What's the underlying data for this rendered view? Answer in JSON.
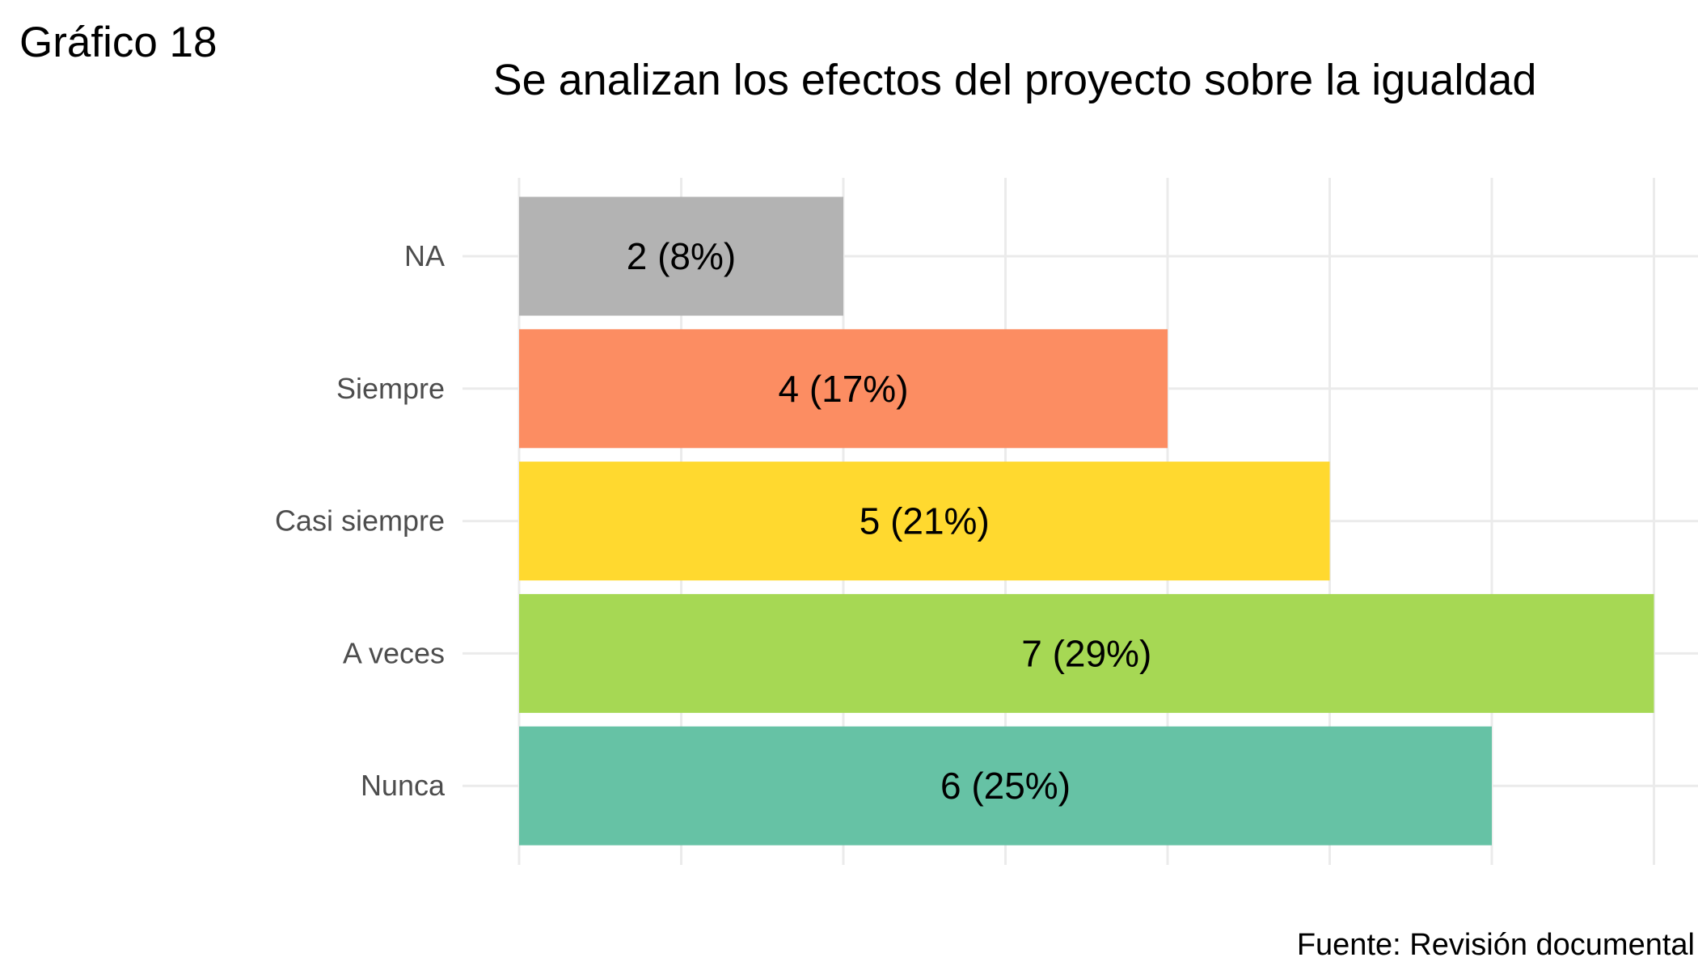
{
  "figure_label": "Gráfico 18",
  "source_note": "Fuente: Revisión documental",
  "chart_data": {
    "type": "bar",
    "orientation": "horizontal",
    "title": "Se analizan los efectos del proyecto sobre la igualdad",
    "xlabel": "",
    "ylabel": "",
    "xlim": [
      0,
      7.2
    ],
    "grid": true,
    "categories": [
      "NA",
      "Siempre",
      "Casi siempre",
      "A veces",
      "Nunca"
    ],
    "values": [
      2,
      4,
      5,
      7,
      6
    ],
    "labels": [
      "2 (8%)",
      "4 (17%)",
      "5 (21%)",
      "7 (29%)",
      "6 (25%)"
    ],
    "colors": [
      "#b3b3b3",
      "#fc8d62",
      "#ffd92f",
      "#a6d854",
      "#66c2a5"
    ],
    "colors_opacity_note": "",
    "legend": "none"
  }
}
